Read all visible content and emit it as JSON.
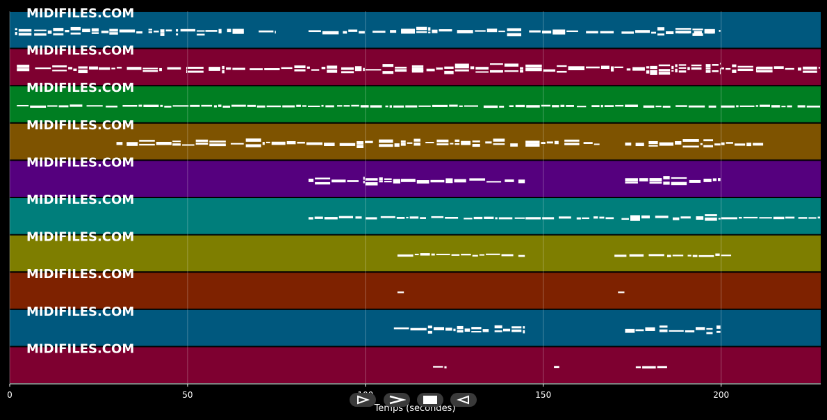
{
  "chart_data": {
    "type": "piano-roll",
    "xlabel": "Temps (secondes)",
    "xlim": [
      0,
      228
    ],
    "x_ticks": [
      0,
      50,
      100,
      150,
      200
    ],
    "grid": true,
    "background": "#000000",
    "note_color": "#ffffff",
    "tracks": [
      {
        "label": "MIDIFILES.COM",
        "color": "#00587e",
        "segments": [
          [
            1.5,
            28,
            1.3
          ],
          [
            28,
            37.5,
            1.3
          ],
          [
            39,
            47.5,
            1.3
          ],
          [
            48,
            55,
            1.3
          ],
          [
            55,
            66,
            1.2
          ],
          [
            70,
            75,
            1.1
          ],
          [
            84,
            100,
            1.3
          ],
          [
            102,
            144,
            1.4
          ],
          [
            146,
            160,
            1.2
          ],
          [
            162,
            170,
            1
          ],
          [
            172,
            200,
            1.3
          ],
          [
            188,
            198,
            1.1
          ]
        ]
      },
      {
        "label": "MIDIFILES.COM",
        "color": "#7e0030",
        "segments": [
          [
            2,
            25,
            1.3
          ],
          [
            25,
            50,
            1.3
          ],
          [
            50,
            80,
            1.4
          ],
          [
            80,
            100,
            1.5
          ],
          [
            100,
            120,
            1.8
          ],
          [
            120,
            145,
            2
          ],
          [
            145,
            170,
            1.6
          ],
          [
            170,
            180,
            1.8
          ],
          [
            180,
            200,
            2.2
          ],
          [
            200,
            210,
            1.8
          ],
          [
            210,
            228,
            1.3
          ]
        ]
      },
      {
        "label": "MIDIFILES.COM",
        "color": "#007e22",
        "segments": [
          [
            2,
            228,
            0.5
          ]
        ]
      },
      {
        "label": "MIDIFILES.COM",
        "color": "#7e5300",
        "segments": [
          [
            30,
            143,
            1.6
          ],
          [
            145,
            166,
            1.5
          ],
          [
            173,
            200,
            1.5
          ],
          [
            200,
            212,
            1.2
          ]
        ]
      },
      {
        "label": "MIDIFILES.COM",
        "color": "#55007e",
        "segments": [
          [
            84,
            100,
            1.2
          ],
          [
            100,
            110,
            1.5
          ],
          [
            110,
            145,
            1.4
          ],
          [
            173,
            200,
            1.3
          ]
        ]
      },
      {
        "label": "MIDIFILES.COM",
        "color": "#007e7b",
        "segments": [
          [
            84,
            145,
            0.9
          ],
          [
            145,
            170,
            0.5
          ],
          [
            172,
            200,
            1.2
          ],
          [
            200,
            228,
            0.5
          ]
        ]
      },
      {
        "label": "MIDIFILES.COM",
        "color": "#7e7e00",
        "segments": [
          [
            109,
            145,
            0.9
          ],
          [
            170,
            203,
            0.8
          ]
        ]
      },
      {
        "label": "MIDIFILES.COM",
        "color": "#7e2200",
        "segments": [
          [
            109,
            111,
            0.3
          ],
          [
            171,
            173,
            0.3
          ]
        ]
      },
      {
        "label": "MIDIFILES.COM",
        "color": "#00587e",
        "segments": [
          [
            108,
            145,
            1.5
          ],
          [
            173,
            200,
            1.5
          ]
        ]
      },
      {
        "label": "MIDIFILES.COM",
        "color": "#7e0030",
        "segments": [
          [
            119,
            123,
            0.4
          ],
          [
            153,
            155,
            0.4
          ],
          [
            176,
            185,
            0.4
          ]
        ]
      }
    ]
  },
  "controls": [
    {
      "name": "play-icon"
    },
    {
      "name": "fast-forward-icon"
    },
    {
      "name": "stop-icon"
    },
    {
      "name": "rewind-icon"
    }
  ]
}
